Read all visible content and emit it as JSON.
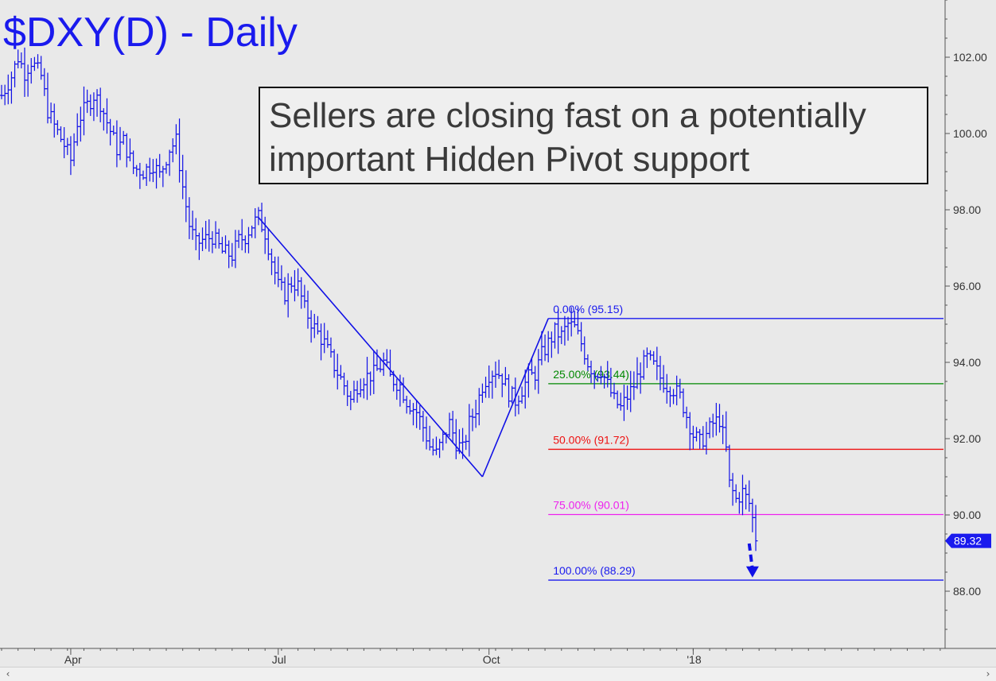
{
  "chart_data": {
    "type": "ohlc",
    "title": "$DXY(D) - Daily",
    "annotation": "Sellers are closing fast on a potentially important Hidden Pivot support",
    "annotation_lines": [
      "Sellers are closing fast on a potentially",
      "important Hidden Pivot support"
    ],
    "ylim": [
      86.5,
      103.5
    ],
    "y_ticks": [
      88,
      90,
      92,
      94,
      96,
      98,
      100,
      102
    ],
    "y_tick_labels": [
      "88.00",
      "90.00",
      "92.00",
      "94.00",
      "96.00",
      "98.00",
      "100.00",
      "102.00"
    ],
    "x_ticks": [
      {
        "label": "Apr",
        "x": 21
      },
      {
        "label": "Jul",
        "x": 84
      },
      {
        "label": "Oct",
        "x": 148
      },
      {
        "label": "'18",
        "x": 210
      }
    ],
    "x_range": [
      0,
      286
    ],
    "last_price": 89.32,
    "last_price_label": "89.32",
    "colors": {
      "price": "#1010e6",
      "title": "#1a1aee",
      "fib_0": "#1a1aee",
      "fib_25": "#008800",
      "fib_50": "#ee1111",
      "fib_75": "#ee22ee",
      "fib_100": "#1a1aee"
    },
    "fib_levels": [
      {
        "key": "fib_0",
        "label": "0.00% (95.15)",
        "value": 95.15,
        "x_start": 166,
        "x_end": 286
      },
      {
        "key": "fib_25",
        "label": "25.00% (93.44)",
        "value": 93.44,
        "x_start": 166,
        "x_end": 286
      },
      {
        "key": "fib_50",
        "label": "50.00% (91.72)",
        "value": 91.72,
        "x_start": 166,
        "x_end": 286
      },
      {
        "key": "fib_75",
        "label": "75.00% (90.01)",
        "value": 90.01,
        "x_start": 166,
        "x_end": 286
      },
      {
        "key": "fib_100",
        "label": "100.00% (88.29)",
        "value": 88.29,
        "x_start": 166,
        "x_end": 286
      }
    ],
    "pivot_lines": [
      {
        "x1": 78,
        "y1": 97.8,
        "x2": 146,
        "y2": 91.0
      },
      {
        "x1": 146,
        "y1": 91.0,
        "x2": 166,
        "y2": 95.15
      }
    ],
    "target_arrow": {
      "x1": 227,
      "y1": 89.25,
      "x2": 228,
      "y2": 88.4
    },
    "price_anchors": [
      [
        0,
        101.0
      ],
      [
        3,
        101.5
      ],
      [
        5,
        102.0
      ],
      [
        7,
        101.6
      ],
      [
        9,
        101.9
      ],
      [
        12,
        101.5
      ],
      [
        14,
        100.6
      ],
      [
        16,
        100.2
      ],
      [
        19,
        99.7
      ],
      [
        21,
        99.3
      ],
      [
        23,
        100.3
      ],
      [
        25,
        100.6
      ],
      [
        28,
        101.0
      ],
      [
        30,
        100.8
      ],
      [
        32,
        100.3
      ],
      [
        35,
        99.6
      ],
      [
        37,
        99.8
      ],
      [
        40,
        99.1
      ],
      [
        43,
        99.0
      ],
      [
        46,
        99.2
      ],
      [
        48,
        98.9
      ],
      [
        51,
        99.6
      ],
      [
        53,
        99.8
      ],
      [
        55,
        98.6
      ],
      [
        57,
        97.6
      ],
      [
        59,
        97.1
      ],
      [
        61,
        97.2
      ],
      [
        64,
        97.3
      ],
      [
        67,
        96.9
      ],
      [
        70,
        96.8
      ],
      [
        72,
        97.2
      ],
      [
        74,
        97.3
      ],
      [
        76,
        97.6
      ],
      [
        78,
        97.8
      ],
      [
        80,
        97.4
      ],
      [
        82,
        96.7
      ],
      [
        84,
        96.0
      ],
      [
        86,
        95.8
      ],
      [
        88,
        96.1
      ],
      [
        90,
        96.0
      ],
      [
        92,
        95.4
      ],
      [
        95,
        94.9
      ],
      [
        98,
        94.5
      ],
      [
        101,
        93.9
      ],
      [
        104,
        93.4
      ],
      [
        106,
        93.0
      ],
      [
        108,
        93.4
      ],
      [
        110,
        93.6
      ],
      [
        113,
        93.7
      ],
      [
        116,
        94.0
      ],
      [
        118,
        93.6
      ],
      [
        121,
        93.4
      ],
      [
        123,
        93.0
      ],
      [
        126,
        92.7
      ],
      [
        128,
        92.3
      ],
      [
        130,
        91.8
      ],
      [
        132,
        91.6
      ],
      [
        134,
        92.0
      ],
      [
        136,
        92.4
      ],
      [
        138,
        91.9
      ],
      [
        140,
        91.7
      ],
      [
        142,
        92.4
      ],
      [
        144,
        92.8
      ],
      [
        146,
        93.4
      ],
      [
        148,
        93.7
      ],
      [
        150,
        93.8
      ],
      [
        152,
        93.6
      ],
      [
        154,
        93.2
      ],
      [
        156,
        93.0
      ],
      [
        158,
        93.3
      ],
      [
        160,
        93.6
      ],
      [
        162,
        93.7
      ],
      [
        164,
        94.2
      ],
      [
        166,
        94.5
      ],
      [
        168,
        94.8
      ],
      [
        170,
        94.7
      ],
      [
        172,
        95.0
      ],
      [
        174,
        94.9
      ],
      [
        176,
        94.5
      ],
      [
        178,
        94.0
      ],
      [
        180,
        93.7
      ],
      [
        182,
        93.8
      ],
      [
        184,
        93.4
      ],
      [
        186,
        93.0
      ],
      [
        188,
        92.8
      ],
      [
        190,
        93.1
      ],
      [
        192,
        93.4
      ],
      [
        194,
        93.8
      ],
      [
        196,
        94.1
      ],
      [
        198,
        93.9
      ],
      [
        200,
        93.6
      ],
      [
        202,
        93.4
      ],
      [
        204,
        93.3
      ],
      [
        206,
        93.1
      ],
      [
        208,
        92.6
      ],
      [
        210,
        92.1
      ],
      [
        212,
        91.9
      ],
      [
        214,
        92.1
      ],
      [
        216,
        92.4
      ],
      [
        218,
        92.5
      ],
      [
        220,
        91.7
      ],
      [
        221,
        90.8
      ],
      [
        223,
        90.4
      ],
      [
        225,
        90.6
      ],
      [
        227,
        90.3
      ],
      [
        228,
        89.9
      ],
      [
        229,
        89.3
      ]
    ]
  },
  "scrollbar": {
    "left_arrow": "‹",
    "right_arrow": "›"
  }
}
